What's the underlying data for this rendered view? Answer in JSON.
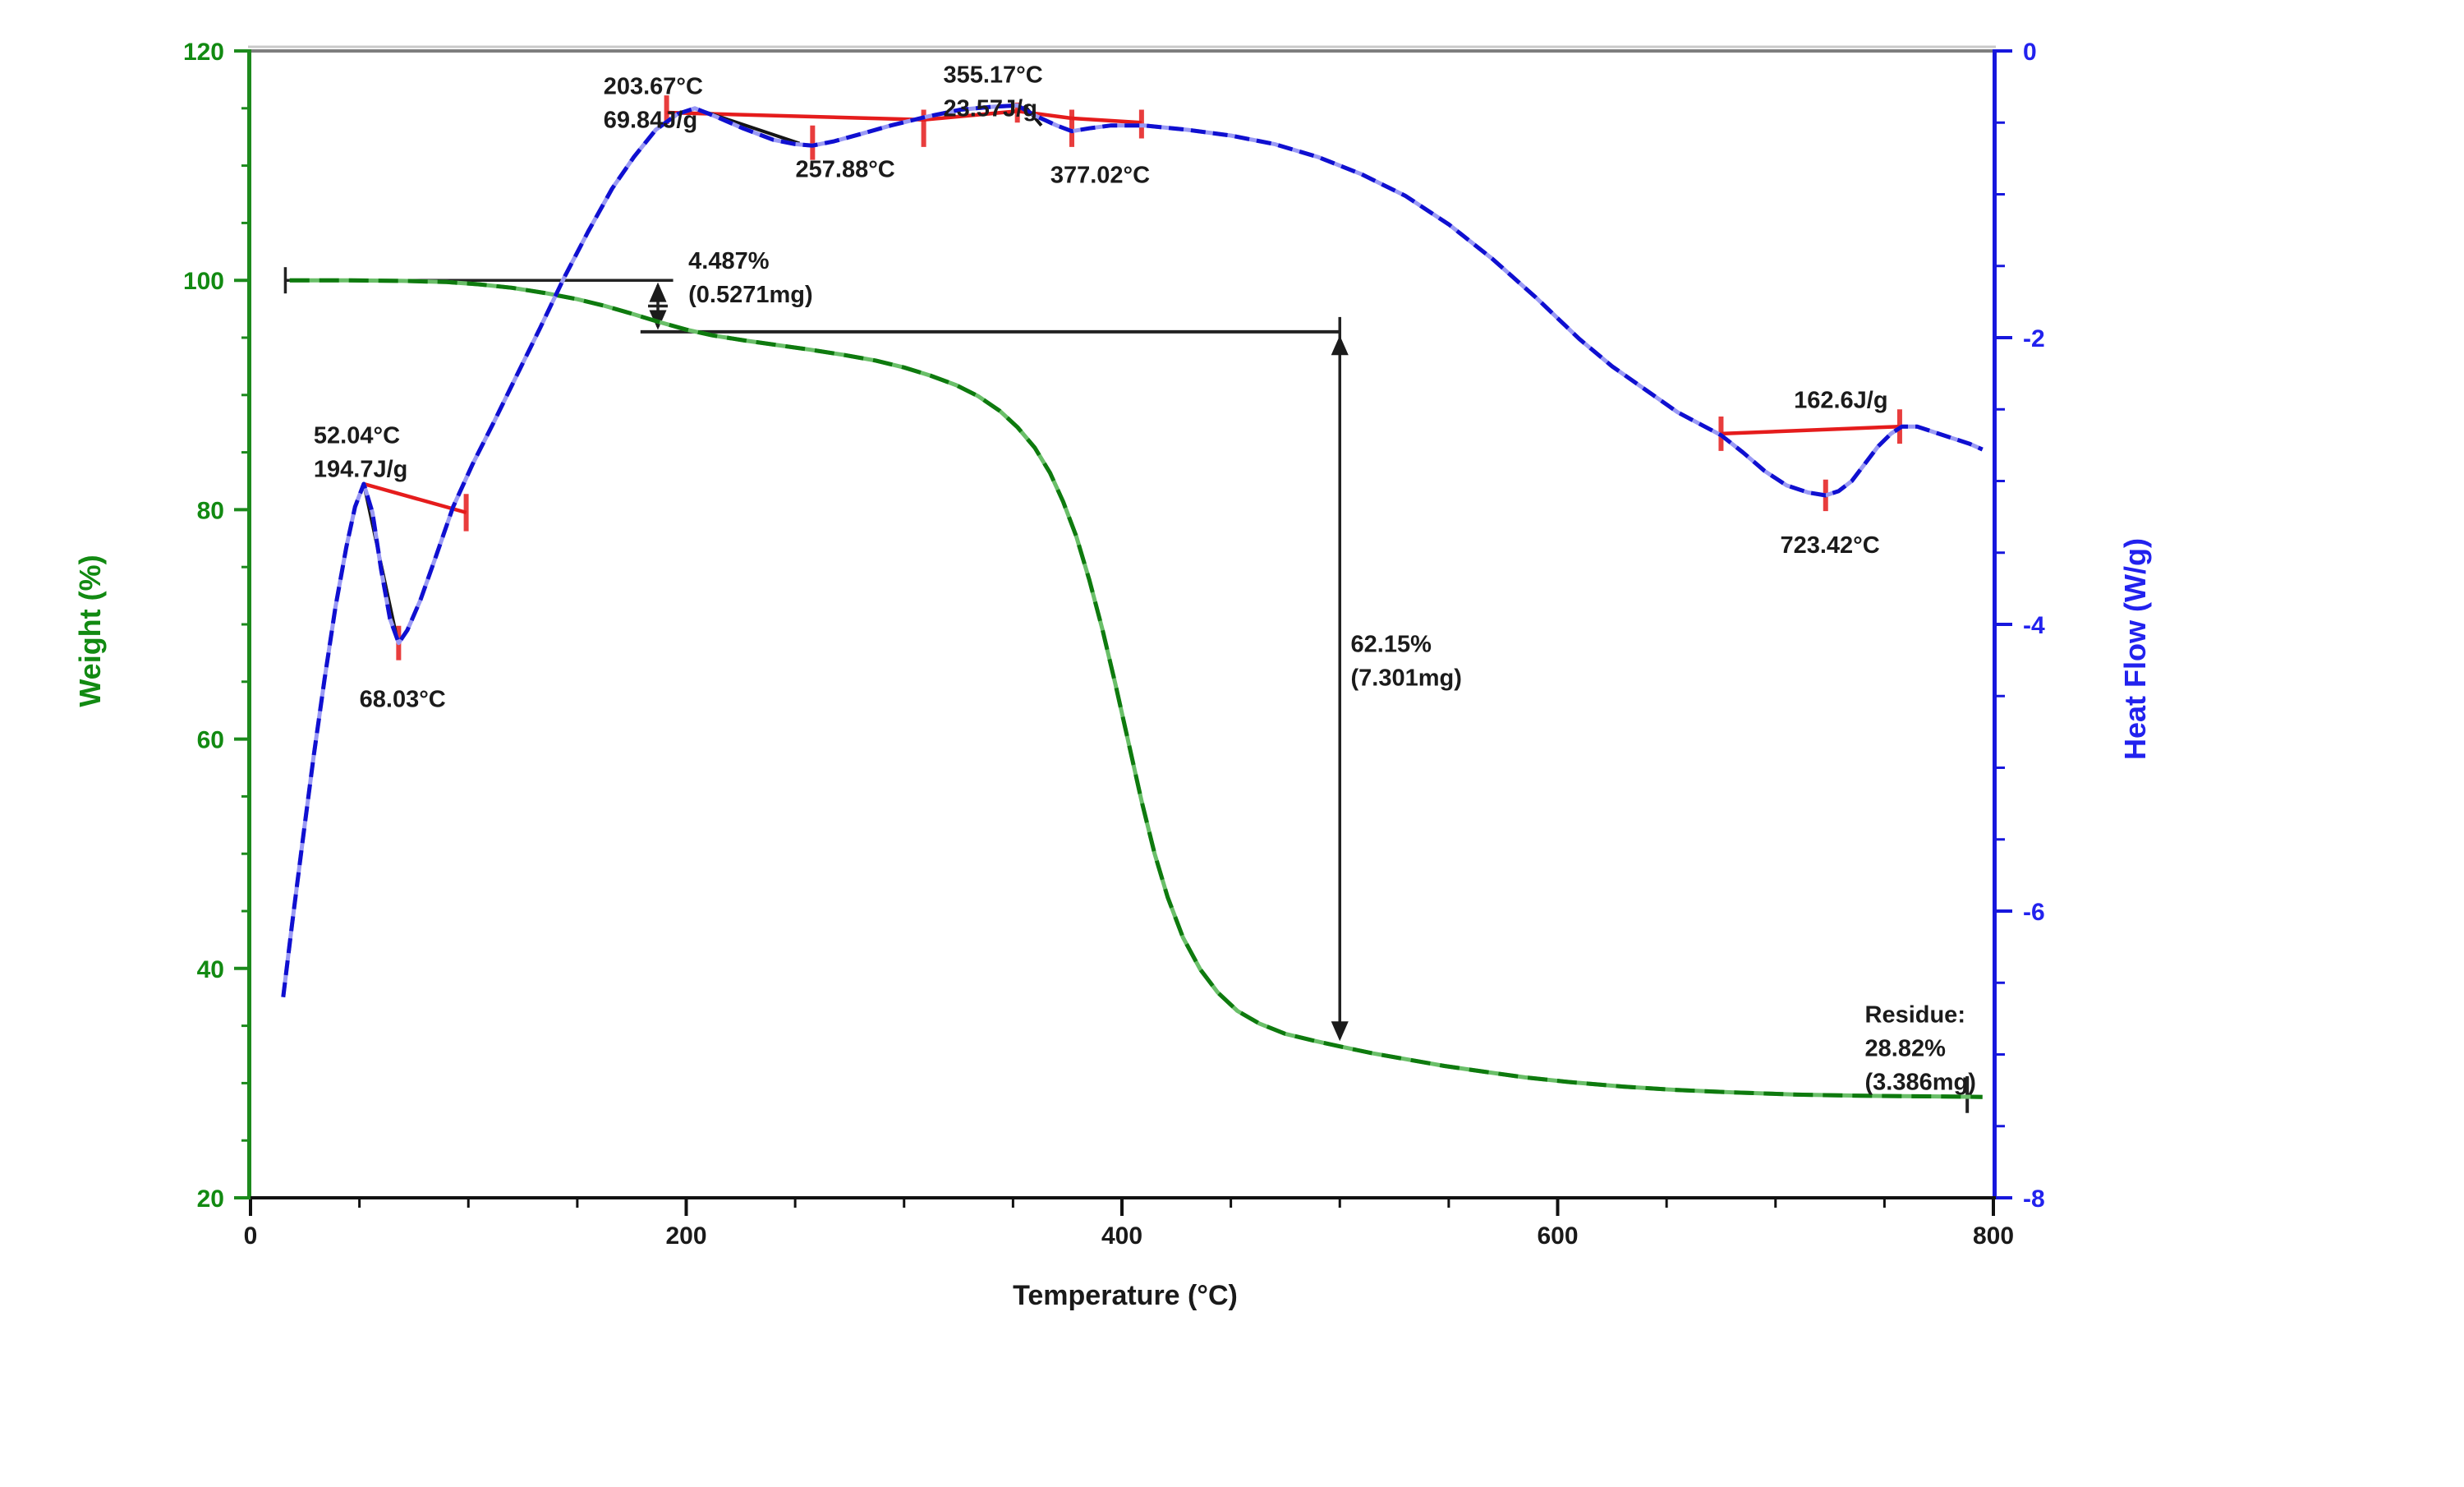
{
  "figure": {
    "kind": "TGA-DSC thermal analysis curve",
    "background": "#ffffff"
  },
  "chart_data": {
    "type": "line",
    "title": "",
    "xlabel": "Temperature (°C)",
    "x_axis": {
      "range": [
        0,
        800
      ],
      "major_ticks": [
        0,
        200,
        400,
        600,
        800
      ],
      "minor_step": 50,
      "color": "#1a1a1a"
    },
    "left_axis": {
      "label": "Weight (%)",
      "range": [
        20,
        120
      ],
      "major_ticks": [
        20,
        40,
        60,
        80,
        100,
        120
      ],
      "minor_step": 5,
      "color": "#1d8a1d",
      "text_color": "#128a12"
    },
    "right_axis": {
      "label": "Heat Flow (W/g)",
      "range": [
        -8,
        0
      ],
      "major_ticks": [
        0,
        -2,
        -4,
        -6,
        -8
      ],
      "minor_step": 0.5,
      "color": "#1717dd",
      "text_color": "#2222ee"
    },
    "grid": false,
    "legend": "none",
    "series": [
      {
        "name": "weight_percent",
        "axis": "left",
        "color_dark": "#0e7a0e",
        "color_light": "#6abf69",
        "points": [
          [
            18,
            100
          ],
          [
            45,
            100
          ],
          [
            70,
            99.95
          ],
          [
            90,
            99.85
          ],
          [
            105,
            99.65
          ],
          [
            120,
            99.35
          ],
          [
            135,
            98.9
          ],
          [
            150,
            98.35
          ],
          [
            162,
            97.8
          ],
          [
            174,
            97.15
          ],
          [
            187,
            96.4
          ],
          [
            200,
            95.7
          ],
          [
            212,
            95.2
          ],
          [
            227,
            94.75
          ],
          [
            242,
            94.35
          ],
          [
            257,
            93.95
          ],
          [
            272,
            93.5
          ],
          [
            287,
            93.0
          ],
          [
            300,
            92.4
          ],
          [
            312,
            91.7
          ],
          [
            324,
            90.85
          ],
          [
            334,
            89.9
          ],
          [
            344,
            88.6
          ],
          [
            352,
            87.2
          ],
          [
            360,
            85.4
          ],
          [
            367,
            83.2
          ],
          [
            373,
            80.7
          ],
          [
            379,
            77.7
          ],
          [
            385,
            73.9
          ],
          [
            391,
            69.6
          ],
          [
            397,
            64.8
          ],
          [
            403,
            59.7
          ],
          [
            409,
            54.6
          ],
          [
            415,
            50.0
          ],
          [
            421,
            46.2
          ],
          [
            428,
            42.7
          ],
          [
            436,
            39.9
          ],
          [
            444,
            37.9
          ],
          [
            453,
            36.3
          ],
          [
            463,
            35.2
          ],
          [
            475,
            34.3
          ],
          [
            488,
            33.7
          ],
          [
            500,
            33.2
          ],
          [
            515,
            32.6
          ],
          [
            530,
            32.1
          ],
          [
            548,
            31.5
          ],
          [
            566,
            31.0
          ],
          [
            585,
            30.5
          ],
          [
            605,
            30.1
          ],
          [
            630,
            29.7
          ],
          [
            655,
            29.4
          ],
          [
            680,
            29.2
          ],
          [
            710,
            29.0
          ],
          [
            740,
            28.9
          ],
          [
            770,
            28.85
          ],
          [
            795,
            28.8
          ]
        ]
      },
      {
        "name": "heat_flow",
        "axis": "right",
        "color_dark": "#0f0fd0",
        "color_light": "#9a9af5",
        "points": [
          [
            15,
            -6.6
          ],
          [
            19,
            -6.1
          ],
          [
            24,
            -5.5
          ],
          [
            29,
            -4.92
          ],
          [
            34,
            -4.38
          ],
          [
            39,
            -3.88
          ],
          [
            44,
            -3.46
          ],
          [
            48,
            -3.18
          ],
          [
            52,
            -3.02
          ],
          [
            56,
            -3.22
          ],
          [
            60,
            -3.62
          ],
          [
            64,
            -3.96
          ],
          [
            68,
            -4.13
          ],
          [
            72,
            -4.04
          ],
          [
            78,
            -3.83
          ],
          [
            85,
            -3.53
          ],
          [
            93,
            -3.18
          ],
          [
            102,
            -2.88
          ],
          [
            112,
            -2.58
          ],
          [
            122,
            -2.27
          ],
          [
            133,
            -1.93
          ],
          [
            144,
            -1.58
          ],
          [
            155,
            -1.26
          ],
          [
            166,
            -0.96
          ],
          [
            176,
            -0.74
          ],
          [
            186,
            -0.55
          ],
          [
            196,
            -0.44
          ],
          [
            204,
            -0.4
          ],
          [
            214,
            -0.46
          ],
          [
            226,
            -0.54
          ],
          [
            240,
            -0.62
          ],
          [
            250,
            -0.65
          ],
          [
            258,
            -0.66
          ],
          [
            268,
            -0.63
          ],
          [
            280,
            -0.58
          ],
          [
            294,
            -0.52
          ],
          [
            310,
            -0.46
          ],
          [
            326,
            -0.41
          ],
          [
            340,
            -0.39
          ],
          [
            352,
            -0.38
          ],
          [
            360,
            -0.45
          ],
          [
            370,
            -0.52
          ],
          [
            377,
            -0.56
          ],
          [
            385,
            -0.54
          ],
          [
            395,
            -0.52
          ],
          [
            410,
            -0.52
          ],
          [
            430,
            -0.55
          ],
          [
            450,
            -0.59
          ],
          [
            470,
            -0.65
          ],
          [
            490,
            -0.74
          ],
          [
            510,
            -0.86
          ],
          [
            530,
            -1.01
          ],
          [
            550,
            -1.21
          ],
          [
            570,
            -1.45
          ],
          [
            590,
            -1.72
          ],
          [
            610,
            -2.01
          ],
          [
            625,
            -2.2
          ],
          [
            640,
            -2.36
          ],
          [
            655,
            -2.52
          ],
          [
            665,
            -2.6
          ],
          [
            675,
            -2.68
          ],
          [
            685,
            -2.8
          ],
          [
            695,
            -2.93
          ],
          [
            705,
            -3.03
          ],
          [
            715,
            -3.08
          ],
          [
            723,
            -3.1
          ],
          [
            729,
            -3.07
          ],
          [
            735,
            -3.0
          ],
          [
            741,
            -2.88
          ],
          [
            747,
            -2.76
          ],
          [
            753,
            -2.67
          ],
          [
            758,
            -2.62
          ],
          [
            765,
            -2.62
          ],
          [
            773,
            -2.66
          ],
          [
            781,
            -2.7
          ],
          [
            789,
            -2.74
          ],
          [
            795,
            -2.78
          ]
        ]
      }
    ],
    "integration_lines": {
      "color": "#e51c1c",
      "segments": [
        {
          "t1": 52,
          "v1": -3.02,
          "t2": 99,
          "v2": -3.22
        },
        {
          "t1": 191,
          "v1": -0.43,
          "t2": 309,
          "v2": -0.48
        },
        {
          "t1": 309,
          "v1": -0.48,
          "t2": 352,
          "v2": -0.42
        },
        {
          "t1": 352,
          "v1": -0.42,
          "t2": 377,
          "v2": -0.47
        },
        {
          "t1": 377,
          "v1": -0.47,
          "t2": 409,
          "v2": -0.5
        },
        {
          "t1": 675,
          "v1": -2.67,
          "t2": 757,
          "v2": -2.62
        }
      ],
      "ticks": [
        {
          "t": 68,
          "v": -4.13,
          "h": 0.12
        },
        {
          "t": 99,
          "v": -3.22,
          "h": 0.13
        },
        {
          "t": 191,
          "v": -0.41,
          "h": 0.1
        },
        {
          "t": 258,
          "v": -0.64,
          "h": 0.12
        },
        {
          "t": 309,
          "v": -0.54,
          "h": 0.13
        },
        {
          "t": 352,
          "v": -0.43,
          "h": 0.07
        },
        {
          "t": 377,
          "v": -0.54,
          "h": 0.13
        },
        {
          "t": 409,
          "v": -0.51,
          "h": 0.1
        },
        {
          "t": 675,
          "v": -2.67,
          "h": 0.12
        },
        {
          "t": 723,
          "v": -3.1,
          "h": 0.11
        },
        {
          "t": 757,
          "v": -2.62,
          "h": 0.12
        }
      ]
    },
    "baseline_drops": {
      "color": "#141414",
      "segments": [
        {
          "t1": 52,
          "v1": -3.02,
          "t2": 67,
          "v2": -4.08
        },
        {
          "t1": 203.7,
          "v1": -0.4,
          "t2": 252,
          "v2": -0.645
        },
        {
          "t1": 355.2,
          "v1": -0.38,
          "t2": 363,
          "v2": -0.52
        }
      ]
    },
    "reference_lines": {
      "color": "#222222",
      "plateau_1": {
        "t1": 16,
        "t2": 194,
        "w": 100,
        "tbar": "start"
      },
      "plateau_2": {
        "t1": 179,
        "t2": 500,
        "w": 95.51,
        "tbar": "end"
      },
      "step_arrow": {
        "t": 187,
        "w1": 100,
        "w2": 95.51
      },
      "loss_arrow": {
        "t": 500,
        "w1": 95.51,
        "w2": 33.35
      },
      "residue_tick": {
        "t": 788,
        "w1": 30.6,
        "w2": 27.4
      }
    },
    "annotations": {
      "color": "#1b1b1b",
      "line_height": 41,
      "items": [
        {
          "id": "peak-203",
          "lines": [
            "203.67°C",
            "69.84J/g"
          ],
          "t": 162,
          "axis": "hf",
          "v": -0.3,
          "align": "left"
        },
        {
          "id": "peak-355",
          "lines": [
            "355.17°C",
            "23.57J/g"
          ],
          "t": 318,
          "axis": "hf",
          "v": -0.22,
          "align": "left"
        },
        {
          "id": "dip-257",
          "lines": [
            "257.88°C"
          ],
          "t": 273,
          "axis": "hf",
          "v": -0.88,
          "align": "center"
        },
        {
          "id": "dip-377",
          "lines": [
            "377.02°C"
          ],
          "t": 390,
          "axis": "hf",
          "v": -0.92,
          "align": "center"
        },
        {
          "id": "step-4487",
          "lines": [
            "4.487%",
            "(0.5271mg)"
          ],
          "t": 201,
          "axis": "wt",
          "v": 101.0,
          "align": "left"
        },
        {
          "id": "peak-52",
          "lines": [
            "52.04°C",
            "194.7J/g"
          ],
          "t": 29,
          "axis": "wt",
          "v": 85.8,
          "align": "left"
        },
        {
          "id": "dip-68",
          "lines": [
            "68.03°C"
          ],
          "t": 50,
          "axis": "wt",
          "v": 62.8,
          "align": "left"
        },
        {
          "id": "loss-6215",
          "lines": [
            "62.15%",
            "(7.301mg)"
          ],
          "t": 505,
          "axis": "wt",
          "v": 67.6,
          "align": "left"
        },
        {
          "id": "area-162",
          "lines": [
            "162.6J/g"
          ],
          "t": 730,
          "axis": "hf",
          "v": -2.49,
          "align": "center"
        },
        {
          "id": "dip-723",
          "lines": [
            "723.42°C"
          ],
          "t": 725,
          "axis": "hf",
          "v": -3.5,
          "align": "center"
        },
        {
          "id": "residue",
          "lines": [
            "Residue:",
            "28.82%",
            "(3.386mg)"
          ],
          "t": 741,
          "axis": "wt",
          "v": 35.3,
          "align": "left"
        }
      ]
    }
  }
}
